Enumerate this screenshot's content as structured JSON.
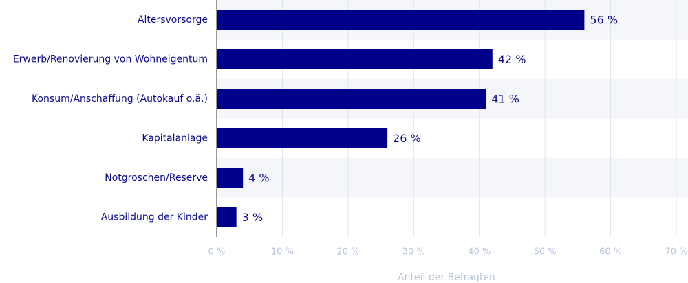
{
  "chart_data": {
    "type": "bar",
    "orientation": "horizontal",
    "categories": [
      "Altersvorsorge",
      "Erwerb/Renovierung von Wohneigentum",
      "Konsum/Anschaffung (Autokauf o.ä.)",
      "Kapitalanlage",
      "Notgroschen/Reserve",
      "Ausbildung der Kinder"
    ],
    "values": [
      56,
      42,
      41,
      26,
      4,
      3
    ],
    "value_labels": [
      "56 %",
      "42 %",
      "41 %",
      "26 %",
      "4 %",
      "3 %"
    ],
    "xlabel": "Anteil der Befragten",
    "ylabel": "",
    "xlim": [
      0,
      70
    ],
    "xticks": [
      0,
      10,
      20,
      30,
      40,
      50,
      60,
      70
    ],
    "xtick_labels": [
      "0 %",
      "10 %",
      "20 %",
      "30 %",
      "40 %",
      "50 %",
      "60 %",
      "70 %"
    ],
    "grid": true,
    "colors": {
      "bar": "#00008b",
      "label": "#0a0a8a",
      "tick": "#b9c4dc",
      "grid": "#dfe3ee",
      "band": "#f4f6fa",
      "axis": "#333333"
    }
  }
}
